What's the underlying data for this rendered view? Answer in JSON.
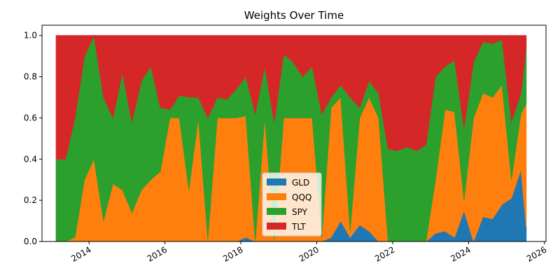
{
  "chart_data": {
    "type": "stacked_area",
    "title": "Weights Over Time",
    "x": [
      2013.13,
      2013.38,
      2013.63,
      2013.88,
      2014.13,
      2014.38,
      2014.63,
      2014.88,
      2015.13,
      2015.38,
      2015.63,
      2015.88,
      2016.13,
      2016.38,
      2016.63,
      2016.88,
      2017.13,
      2017.38,
      2017.63,
      2017.88,
      2018.13,
      2018.38,
      2018.63,
      2018.88,
      2019.13,
      2019.38,
      2019.63,
      2019.88,
      2020.13,
      2020.38,
      2020.63,
      2020.88,
      2021.13,
      2021.38,
      2021.63,
      2021.88,
      2022.13,
      2022.38,
      2022.63,
      2022.88,
      2023.13,
      2023.38,
      2023.63,
      2023.88,
      2024.13,
      2024.38,
      2024.63,
      2024.88,
      2025.13,
      2025.38,
      2025.52
    ],
    "series": [
      {
        "name": "GLD",
        "color": "#1f77b4",
        "values": [
          0,
          0,
          0,
          0,
          0,
          0,
          0,
          0,
          0,
          0,
          0,
          0,
          0,
          0,
          0,
          0,
          0,
          0,
          0,
          0,
          0.02,
          0,
          0,
          0,
          0,
          0,
          0,
          0,
          0,
          0.02,
          0.1,
          0.02,
          0.08,
          0.05,
          0,
          0,
          0,
          0,
          0,
          0,
          0.04,
          0.05,
          0.02,
          0.15,
          0,
          0.12,
          0.11,
          0.18,
          0.21,
          0.35,
          0.07
        ]
      },
      {
        "name": "QQQ",
        "color": "#ff7f0e",
        "values": [
          0,
          0,
          0.02,
          0.3,
          0.4,
          0.1,
          0.28,
          0.25,
          0.14,
          0.25,
          0.3,
          0.34,
          0.6,
          0.6,
          0.25,
          0.6,
          0.01,
          0.6,
          0.6,
          0.6,
          0.59,
          0,
          0.6,
          0.01,
          0.6,
          0.6,
          0.6,
          0.6,
          0.02,
          0.63,
          0.6,
          0.03,
          0.52,
          0.65,
          0.6,
          0,
          0,
          0,
          0,
          0,
          0.26,
          0.59,
          0.61,
          0.05,
          0.6,
          0.6,
          0.59,
          0.58,
          0.09,
          0.27,
          0.6
        ]
      },
      {
        "name": "SPY",
        "color": "#2ca02c",
        "values": [
          0.4,
          0.4,
          0.58,
          0.6,
          0.6,
          0.6,
          0.32,
          0.57,
          0.44,
          0.53,
          0.55,
          0.31,
          0.04,
          0.11,
          0.45,
          0.1,
          0.59,
          0.1,
          0.09,
          0.14,
          0.19,
          0.62,
          0.25,
          0.57,
          0.31,
          0.27,
          0.2,
          0.25,
          0.6,
          0.05,
          0.06,
          0.65,
          0.05,
          0.08,
          0.12,
          0.45,
          0.44,
          0.46,
          0.44,
          0.47,
          0.5,
          0.21,
          0.25,
          0.35,
          0.27,
          0.25,
          0.26,
          0.22,
          0.28,
          0.1,
          0.28
        ]
      },
      {
        "name": "TLT",
        "color": "#d62728",
        "values": [
          0.6,
          0.6,
          0.4,
          0.1,
          0,
          0.3,
          0.4,
          0.18,
          0.42,
          0.22,
          0.15,
          0.35,
          0.36,
          0.29,
          0.3,
          0.3,
          0.4,
          0.3,
          0.31,
          0.26,
          0.2,
          0.38,
          0.15,
          0.42,
          0.09,
          0.13,
          0.2,
          0.15,
          0.38,
          0.3,
          0.24,
          0.3,
          0.35,
          0.22,
          0.28,
          0.55,
          0.56,
          0.54,
          0.56,
          0.53,
          0.2,
          0.15,
          0.12,
          0.45,
          0.13,
          0.03,
          0.04,
          0.02,
          0.42,
          0.28,
          0.05
        ]
      }
    ],
    "xlim": [
      2012.76,
      2026.04
    ],
    "xticks": [
      2014,
      2016,
      2018,
      2020,
      2022,
      2024,
      2026
    ],
    "ylim": [
      0,
      1.05
    ],
    "yticks": [
      {
        "value": 0,
        "label": "0.0"
      },
      0.2,
      0.4,
      0.6,
      0.8,
      {
        "value": 1,
        "label": "1.0"
      }
    ],
    "legend": "lower center"
  }
}
